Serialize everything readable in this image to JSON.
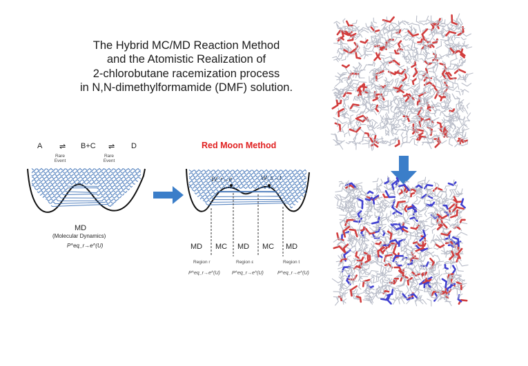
{
  "title": {
    "line1": "The Hybrid MC/MD Reaction Method",
    "line2": "and the Atomistic Realization of",
    "line3": "2-chlorobutane racemization process",
    "line4": "in N,N-dimethylformamide (DMF) solution."
  },
  "reaction": {
    "a": "A",
    "eq1": "⇌",
    "bc": "B+C",
    "eq2": "⇌",
    "d": "D",
    "rare1": "Rare\nEvent",
    "rare2": "Rare\nEvent"
  },
  "md_panel": {
    "label": "MD",
    "sublabel": "(Molecular Dynamics)",
    "prob": "P^eq_r→e^(U)"
  },
  "red_moon": {
    "title": "Red Moon Method",
    "w1": "W_r→e",
    "w2": "W_s→t",
    "regions": [
      "MD",
      "MC",
      "MD",
      "MC",
      "MD"
    ],
    "region_r": "Region r",
    "region_e": "Region ε",
    "region_t": "Region t",
    "prob": "P^eq_r→e^(U)"
  },
  "colors": {
    "arrow": "#3b7ec9",
    "blue_molecule": "#3f3fd0",
    "red_molecule": "#d23c3c",
    "grey_molecule": "#b8bcc8",
    "red_text": "#e02020",
    "wave": "#3a6fb5"
  }
}
